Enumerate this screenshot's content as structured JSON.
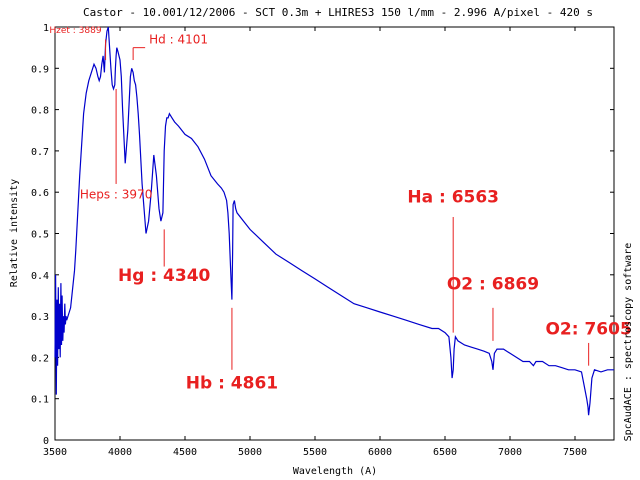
{
  "chart_data": {
    "type": "line",
    "title": "Castor - 10.001/12/2006 - SCT 0.3m + LHIRES3 150 l/mm - 2.996 A/pixel - 420 s",
    "xlabel": "Wavelength (A)",
    "ylabel": "Relative intensity",
    "side_label": "SpcAudACE : spectroscopy software",
    "xlim": [
      3500,
      7800
    ],
    "ylim": [
      0,
      1
    ],
    "xticks": [
      "3500",
      "4000",
      "4500",
      "5000",
      "5500",
      "6000",
      "6500",
      "7000",
      "7500"
    ],
    "yticks": [
      "0",
      "0.1",
      "0.2",
      "0.3",
      "0.4",
      "0.5",
      "0.6",
      "0.7",
      "0.8",
      "0.9",
      "1"
    ],
    "grid": false,
    "line_color": "#0000cc",
    "annotation_color": "#e82020",
    "series": [
      {
        "x": [
          3500,
          3505,
          3510,
          3515,
          3520,
          3525,
          3530,
          3535,
          3540,
          3545,
          3550,
          3555,
          3560,
          3565,
          3570,
          3575,
          3580,
          3585,
          3590,
          3600,
          3610,
          3620,
          3630,
          3640,
          3650,
          3660,
          3670,
          3680,
          3690,
          3700,
          3710,
          3720,
          3740,
          3760,
          3780,
          3800,
          3815,
          3830,
          3840,
          3850,
          3860,
          3870,
          3880,
          3889,
          3900,
          3910,
          3920,
          3930,
          3940,
          3950,
          3960,
          3965,
          3970,
          3975,
          3985,
          4000,
          4010,
          4020,
          4040,
          4060,
          4080,
          4090,
          4101,
          4110,
          4120,
          4130,
          4140,
          4150,
          4170,
          4200,
          4220,
          4240,
          4260,
          4280,
          4300,
          4315,
          4330,
          4340,
          4350,
          4360,
          4370,
          4380,
          4400,
          4420,
          4450,
          4500,
          4550,
          4600,
          4650,
          4700,
          4750,
          4780,
          4800,
          4820,
          4830,
          4840,
          4850,
          4855,
          4861,
          4866,
          4870,
          4880,
          4890,
          4900,
          4950,
          5000,
          5100,
          5200,
          5300,
          5400,
          5500,
          5600,
          5700,
          5800,
          5900,
          6000,
          6100,
          6200,
          6300,
          6400,
          6450,
          6500,
          6530,
          6545,
          6555,
          6563,
          6570,
          6580,
          6600,
          6650,
          6700,
          6750,
          6800,
          6840,
          6860,
          6869,
          6880,
          6900,
          6950,
          7000,
          7050,
          7100,
          7150,
          7180,
          7200,
          7250,
          7300,
          7350,
          7400,
          7450,
          7500,
          7550,
          7590,
          7600,
          7605,
          7615,
          7630,
          7650,
          7700,
          7750,
          7800
        ],
        "y": [
          0.2,
          0.4,
          0.11,
          0.34,
          0.18,
          0.37,
          0.22,
          0.33,
          0.2,
          0.38,
          0.23,
          0.35,
          0.24,
          0.3,
          0.26,
          0.33,
          0.28,
          0.3,
          0.29,
          0.3,
          0.31,
          0.32,
          0.35,
          0.38,
          0.41,
          0.46,
          0.52,
          0.58,
          0.64,
          0.69,
          0.74,
          0.79,
          0.84,
          0.87,
          0.89,
          0.91,
          0.9,
          0.88,
          0.87,
          0.88,
          0.91,
          0.93,
          0.89,
          0.96,
          0.99,
          1.0,
          0.95,
          0.9,
          0.86,
          0.85,
          0.86,
          0.9,
          0.93,
          0.95,
          0.94,
          0.92,
          0.88,
          0.8,
          0.67,
          0.75,
          0.88,
          0.9,
          0.89,
          0.87,
          0.86,
          0.83,
          0.79,
          0.74,
          0.62,
          0.5,
          0.53,
          0.6,
          0.69,
          0.64,
          0.56,
          0.53,
          0.55,
          0.7,
          0.76,
          0.78,
          0.78,
          0.79,
          0.78,
          0.77,
          0.76,
          0.74,
          0.73,
          0.71,
          0.68,
          0.64,
          0.62,
          0.61,
          0.6,
          0.58,
          0.55,
          0.5,
          0.42,
          0.38,
          0.34,
          0.45,
          0.57,
          0.58,
          0.56,
          0.55,
          0.53,
          0.51,
          0.48,
          0.45,
          0.43,
          0.41,
          0.39,
          0.37,
          0.35,
          0.33,
          0.32,
          0.31,
          0.3,
          0.29,
          0.28,
          0.27,
          0.27,
          0.26,
          0.25,
          0.2,
          0.15,
          0.17,
          0.22,
          0.25,
          0.24,
          0.23,
          0.225,
          0.22,
          0.215,
          0.21,
          0.19,
          0.17,
          0.21,
          0.22,
          0.22,
          0.21,
          0.2,
          0.19,
          0.19,
          0.18,
          0.19,
          0.19,
          0.18,
          0.18,
          0.175,
          0.17,
          0.17,
          0.165,
          0.1,
          0.08,
          0.06,
          0.09,
          0.15,
          0.17,
          0.165,
          0.17,
          0.17
        ]
      }
    ],
    "annotations": [
      {
        "label": "Hzet : 3889",
        "wavelength": 3889,
        "y_top": 0.97,
        "y_bot": 0.92,
        "label_y": 0.985,
        "size": "small"
      },
      {
        "label": "Hd : 4101",
        "wavelength": 4101,
        "y_top": 0.95,
        "y_bot": 0.92,
        "label_y": 0.96,
        "size": "medium"
      },
      {
        "label": "Heps : 3970",
        "wavelength": 3970,
        "y_top": 0.85,
        "y_bot": 0.62,
        "label_y": 0.585,
        "size": "medium"
      },
      {
        "label": "Hg : 4340",
        "wavelength": 4340,
        "y_top": 0.51,
        "y_bot": 0.42,
        "label_y": 0.385,
        "size": "large"
      },
      {
        "label": "Hb : 4861",
        "wavelength": 4861,
        "y_top": 0.32,
        "y_bot": 0.17,
        "label_y": 0.125,
        "size": "large"
      },
      {
        "label": "Ha : 6563",
        "wavelength": 6563,
        "y_top": 0.54,
        "y_bot": 0.26,
        "label_y": 0.575,
        "size": "large"
      },
      {
        "label": "O2 : 6869",
        "wavelength": 6869,
        "y_top": 0.32,
        "y_bot": 0.24,
        "label_y": 0.365,
        "size": "large"
      },
      {
        "label": "O2: 7605",
        "wavelength": 7605,
        "y_top": 0.235,
        "y_bot": 0.18,
        "label_y": 0.255,
        "size": "large"
      }
    ]
  }
}
